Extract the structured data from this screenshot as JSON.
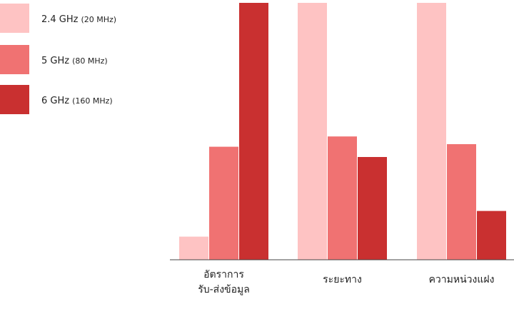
{
  "chart_data": {
    "type": "bar",
    "categories": [
      [
        "อัตราการ",
        "รับ-ส่งข้อมูล"
      ],
      [
        "ระยะทาง"
      ],
      [
        "ความหน่วงแฝง"
      ]
    ],
    "series": [
      {
        "name": "2.4 GHz",
        "detail": "(20 MHz)",
        "color": "#fec3c3",
        "values": [
          9,
          100,
          100
        ]
      },
      {
        "name": "5 GHz",
        "detail": "(80 MHz)",
        "color": "#f07272",
        "values": [
          44,
          48,
          45
        ]
      },
      {
        "name": "6 GHz",
        "detail": "(160 MHz)",
        "color": "#c93030",
        "values": [
          100,
          40,
          19
        ]
      }
    ],
    "ylim": [
      0,
      100
    ],
    "grid": false,
    "legend_position": "top-left"
  }
}
